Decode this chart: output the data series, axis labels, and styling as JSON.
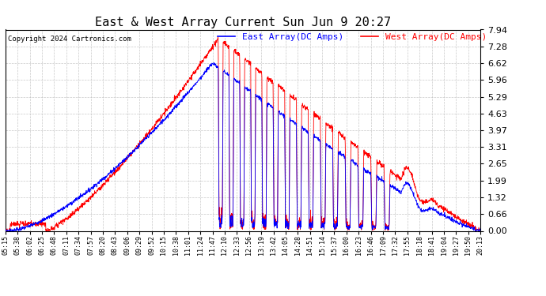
{
  "title": "East & West Array Current Sun Jun 9 20:27",
  "copyright": "Copyright 2024 Cartronics.com",
  "legend_east": "East Array(DC Amps)",
  "legend_west": "West Array(DC Amps)",
  "east_color": "#0000ff",
  "west_color": "#ff0000",
  "background_color": "#ffffff",
  "grid_color": "#bbbbbb",
  "ylim": [
    0.0,
    7.94
  ],
  "yticks": [
    0.0,
    0.66,
    1.32,
    1.99,
    2.65,
    3.31,
    3.97,
    4.63,
    5.29,
    5.96,
    6.62,
    7.28,
    7.94
  ],
  "x_labels": [
    "05:15",
    "05:38",
    "06:02",
    "06:25",
    "06:48",
    "07:11",
    "07:34",
    "07:57",
    "08:20",
    "08:43",
    "09:06",
    "09:29",
    "09:52",
    "10:15",
    "10:38",
    "11:01",
    "11:24",
    "11:47",
    "12:10",
    "12:33",
    "12:56",
    "13:19",
    "13:42",
    "14:05",
    "14:28",
    "14:51",
    "15:14",
    "15:37",
    "16:00",
    "16:23",
    "16:46",
    "17:09",
    "17:32",
    "17:55",
    "18:18",
    "18:41",
    "19:04",
    "19:27",
    "19:50",
    "20:13"
  ],
  "figsize": [
    6.9,
    3.75
  ],
  "dpi": 100
}
